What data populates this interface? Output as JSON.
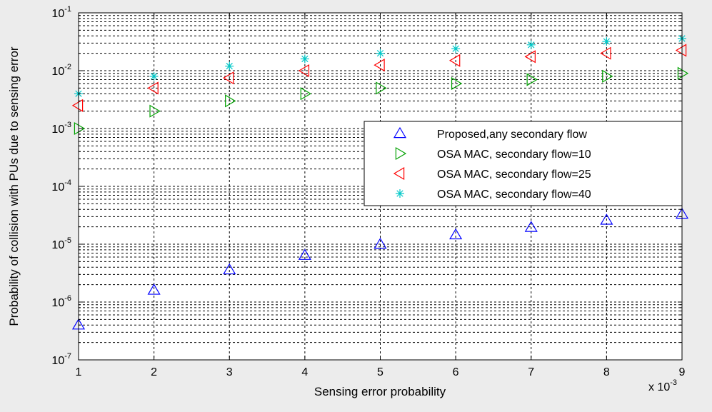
{
  "chart_data": {
    "type": "scatter",
    "xlabel": "Sensing error probability",
    "ylabel": "Probability of collision with PUs due to sensing error",
    "x_scale_note": "x 10",
    "x_scale_exponent": "-3",
    "xlim": [
      1,
      9
    ],
    "ylim": [
      1e-07,
      0.1
    ],
    "y_scale": "log",
    "grid": true,
    "legend_position": "right",
    "x_ticks": [
      "1",
      "2",
      "3",
      "4",
      "5",
      "6",
      "7",
      "8",
      "9"
    ],
    "y_ticks": [
      {
        "base": "10",
        "exp": "-7"
      },
      {
        "base": "10",
        "exp": "-6"
      },
      {
        "base": "10",
        "exp": "-5"
      },
      {
        "base": "10",
        "exp": "-4"
      },
      {
        "base": "10",
        "exp": "-3"
      },
      {
        "base": "10",
        "exp": "-2"
      },
      {
        "base": "10",
        "exp": "-1"
      }
    ],
    "x": [
      1,
      2,
      3,
      4,
      5,
      6,
      7,
      8,
      9
    ],
    "series": [
      {
        "name": "Proposed,any secondary flow",
        "marker": "triangle-up",
        "color": "#0000ff",
        "values": [
          4e-07,
          1.6e-06,
          3.6e-06,
          6.4e-06,
          1e-05,
          1.45e-05,
          1.95e-05,
          2.6e-05,
          3.3e-05
        ]
      },
      {
        "name": "OSA MAC, secondary flow=10",
        "marker": "triangle-right",
        "color": "#00a000",
        "values": [
          0.001,
          0.002,
          0.003,
          0.004,
          0.005,
          0.006,
          0.007,
          0.008,
          0.009
        ]
      },
      {
        "name": "OSA MAC, secondary flow=25",
        "marker": "triangle-left",
        "color": "#ff0000",
        "values": [
          0.0025,
          0.005,
          0.0075,
          0.01,
          0.0125,
          0.015,
          0.0175,
          0.02,
          0.0225
        ]
      },
      {
        "name": "OSA MAC, secondary flow=40",
        "marker": "star",
        "color": "#00c8c8",
        "values": [
          0.004,
          0.008,
          0.012,
          0.016,
          0.02,
          0.024,
          0.028,
          0.032,
          0.036
        ]
      }
    ]
  }
}
